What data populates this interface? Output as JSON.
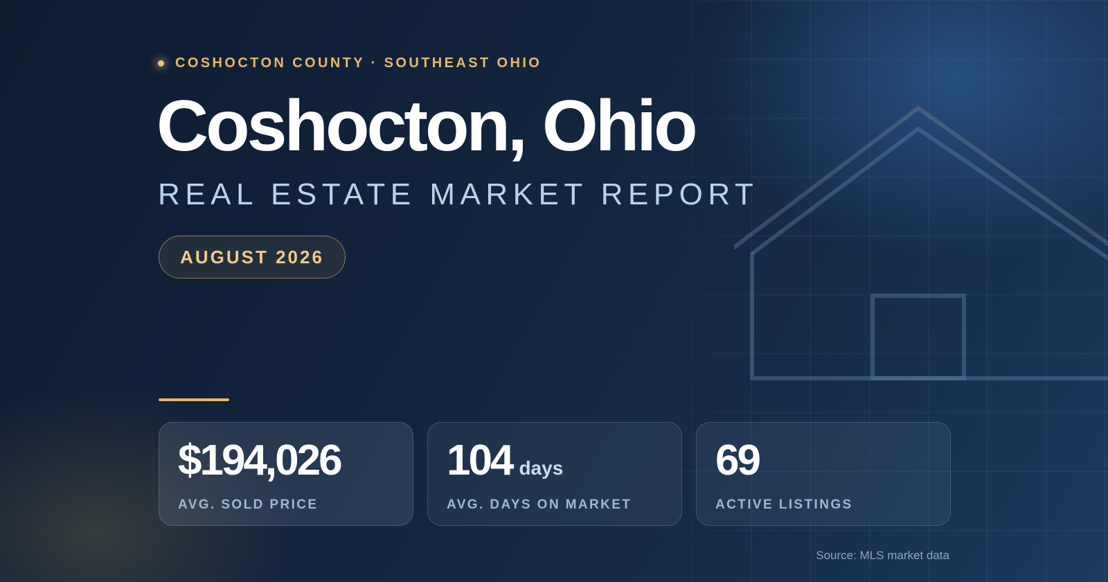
{
  "eyebrow": {
    "text": "COSHOCTON COUNTY · SOUTHEAST OHIO"
  },
  "title": "Coshocton, Ohio",
  "subtitle": "REAL ESTATE MARKET REPORT",
  "date_badge": "AUGUST 2026",
  "stats": [
    {
      "value": "$194,026",
      "unit": "",
      "label": "AVG. SOLD PRICE"
    },
    {
      "value": "104",
      "unit": "days",
      "label": "AVG. DAYS ON MARKET"
    },
    {
      "value": "69",
      "unit": "",
      "label": "ACTIVE LISTINGS"
    }
  ],
  "source": "Source: MLS market data",
  "colors": {
    "accent": "#e8b86a",
    "subtitle": "#b9d2ee",
    "background": "#13243e"
  },
  "icons": {
    "dot": "dot-icon",
    "house": "house-outline-icon"
  }
}
